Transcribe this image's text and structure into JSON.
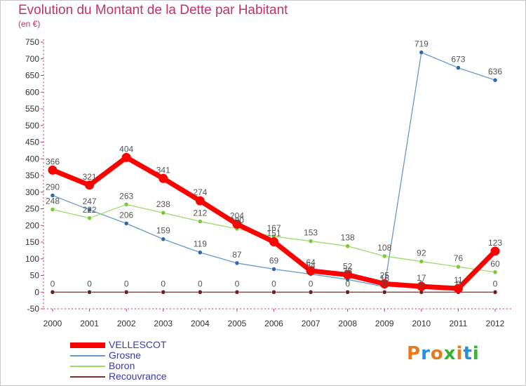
{
  "chart_data": {
    "type": "line",
    "title": "Evolution du Montant de la Dette par Habitant",
    "unit_label": "(en €)",
    "x": [
      "2000",
      "2001",
      "2002",
      "2003",
      "2004",
      "2005",
      "2006",
      "2007",
      "2008",
      "2009",
      "2010",
      "2011",
      "2012"
    ],
    "ylim": [
      -50,
      750
    ],
    "yticks": [
      750,
      700,
      650,
      600,
      550,
      500,
      450,
      400,
      350,
      300,
      250,
      200,
      150,
      100,
      50,
      0,
      -50
    ],
    "grid": false,
    "legend_position": "bottom-left",
    "series": [
      {
        "name": "VELLESCOT",
        "color": "#ff0000",
        "values": [
          366,
          321,
          404,
          341,
          274,
          204,
          151,
          64,
          52,
          25,
          17,
          11,
          123
        ]
      },
      {
        "name": "Grosne",
        "color": "#6699cc",
        "values": [
          290,
          247,
          206,
          159,
          119,
          87,
          69,
          54,
          38,
          16,
          719,
          673,
          636
        ]
      },
      {
        "name": "Boron",
        "color": "#99dd66",
        "values": [
          248,
          222,
          263,
          238,
          212,
          190,
          167,
          153,
          138,
          108,
          92,
          76,
          60
        ]
      },
      {
        "name": "Recouvrance",
        "color": "#773333",
        "values": [
          0,
          0,
          0,
          0,
          0,
          0,
          0,
          0,
          0,
          0,
          0,
          0,
          0
        ]
      }
    ]
  },
  "logo": {
    "text": "Proxiti",
    "colors": [
      "#e87a1e",
      "#2a8fd8",
      "#e87a1e",
      "#3cb034",
      "#e87a1e",
      "#2a8fd8",
      "#3cb034"
    ]
  }
}
